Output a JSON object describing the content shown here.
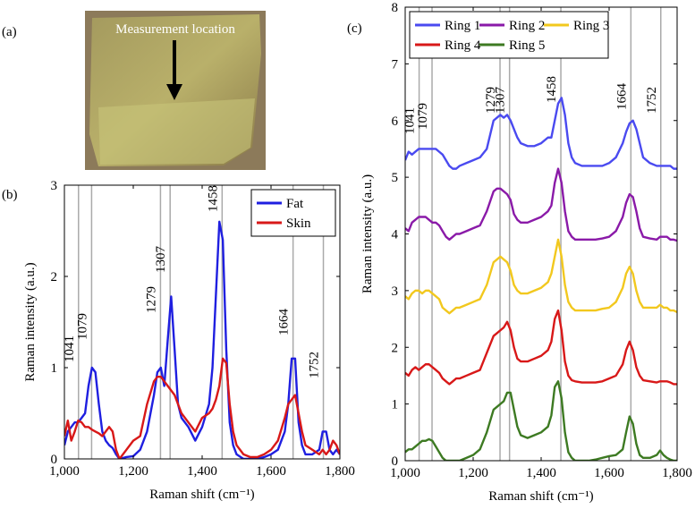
{
  "photo": {
    "panel_label": "(a)",
    "annotation": "Measurement location"
  },
  "chart_data": [
    {
      "type": "line",
      "panel_label": "(b)",
      "x_label": "Raman shift (cm⁻¹)",
      "y_label": "Raman intensity (a.u.)",
      "xlim": [
        1000,
        1800
      ],
      "ylim": [
        0,
        3
      ],
      "xticks": [
        {
          "value": 1000,
          "label": "1,000"
        },
        {
          "value": 1200,
          "label": "1,200"
        },
        {
          "value": 1400,
          "label": "1,400"
        },
        {
          "value": 1600,
          "label": "1,600"
        },
        {
          "value": 1800,
          "label": "1,800"
        }
      ],
      "yticks": [
        0,
        1,
        2,
        3
      ],
      "legend_position": "upper right",
      "reference_lines": [
        1041,
        1079,
        1279,
        1307,
        1458,
        1664,
        1752
      ],
      "x": [
        1000,
        1010,
        1020,
        1030,
        1040,
        1050,
        1060,
        1070,
        1080,
        1090,
        1100,
        1110,
        1120,
        1130,
        1140,
        1150,
        1160,
        1180,
        1200,
        1220,
        1240,
        1260,
        1270,
        1280,
        1290,
        1300,
        1310,
        1320,
        1330,
        1340,
        1360,
        1380,
        1400,
        1420,
        1430,
        1440,
        1450,
        1460,
        1470,
        1480,
        1490,
        1500,
        1520,
        1540,
        1560,
        1580,
        1600,
        1620,
        1640,
        1650,
        1660,
        1670,
        1680,
        1690,
        1700,
        1720,
        1740,
        1750,
        1760,
        1770,
        1780,
        1790,
        1800
      ],
      "series": [
        {
          "name": "Fat",
          "color": "#1f1fe0",
          "values": [
            0.15,
            0.3,
            0.35,
            0.4,
            0.4,
            0.45,
            0.5,
            0.8,
            1.0,
            0.95,
            0.6,
            0.3,
            0.2,
            0.15,
            0.12,
            0.05,
            0.0,
            0.02,
            0.03,
            0.1,
            0.3,
            0.7,
            0.95,
            1.0,
            0.8,
            1.3,
            1.78,
            1.2,
            0.6,
            0.45,
            0.35,
            0.2,
            0.35,
            0.6,
            1.0,
            1.8,
            2.6,
            2.4,
            1.2,
            0.4,
            0.15,
            0.05,
            0.0,
            0.0,
            0.0,
            0.02,
            0.05,
            0.1,
            0.3,
            0.6,
            1.1,
            1.1,
            0.4,
            0.15,
            0.05,
            0.05,
            0.1,
            0.3,
            0.3,
            0.1,
            0.05,
            0.1,
            0.05
          ]
        },
        {
          "name": "Skin",
          "color": "#d81818",
          "values": [
            0.25,
            0.42,
            0.2,
            0.3,
            0.42,
            0.4,
            0.35,
            0.35,
            0.32,
            0.3,
            0.28,
            0.25,
            0.3,
            0.35,
            0.3,
            0.1,
            0.0,
            0.1,
            0.2,
            0.25,
            0.6,
            0.85,
            0.9,
            0.9,
            0.85,
            0.8,
            0.75,
            0.7,
            0.6,
            0.5,
            0.4,
            0.3,
            0.45,
            0.5,
            0.55,
            0.65,
            0.8,
            1.1,
            1.05,
            0.6,
            0.3,
            0.15,
            0.05,
            0.02,
            0.02,
            0.05,
            0.1,
            0.2,
            0.45,
            0.6,
            0.65,
            0.7,
            0.5,
            0.3,
            0.15,
            0.1,
            0.05,
            0.1,
            0.05,
            0.1,
            0.2,
            0.15,
            0.05
          ]
        }
      ]
    },
    {
      "type": "line",
      "panel_label": "(c)",
      "x_label": "Raman shift (cm⁻¹)",
      "y_label": "Raman intensity (a.u.)",
      "xlim": [
        1000,
        1800
      ],
      "ylim": [
        0,
        8
      ],
      "xticks": [
        {
          "value": 1000,
          "label": "1,000"
        },
        {
          "value": 1200,
          "label": "1,200"
        },
        {
          "value": 1400,
          "label": "1,400"
        },
        {
          "value": 1600,
          "label": "1,600"
        },
        {
          "value": 1800,
          "label": "1,800"
        }
      ],
      "yticks": [
        0,
        1,
        2,
        3,
        4,
        5,
        6,
        7,
        8
      ],
      "legend_position": "upper left",
      "reference_lines": [
        1041,
        1079,
        1279,
        1307,
        1458,
        1664,
        1752
      ],
      "x": [
        1000,
        1010,
        1020,
        1030,
        1040,
        1050,
        1060,
        1070,
        1080,
        1090,
        1100,
        1110,
        1120,
        1130,
        1140,
        1150,
        1160,
        1180,
        1200,
        1220,
        1240,
        1260,
        1270,
        1280,
        1290,
        1300,
        1310,
        1320,
        1330,
        1340,
        1360,
        1380,
        1400,
        1420,
        1430,
        1440,
        1450,
        1460,
        1470,
        1480,
        1490,
        1500,
        1520,
        1540,
        1560,
        1580,
        1600,
        1620,
        1640,
        1650,
        1660,
        1670,
        1680,
        1690,
        1700,
        1720,
        1740,
        1750,
        1760,
        1770,
        1780,
        1790,
        1800
      ],
      "series": [
        {
          "name": "Ring 1",
          "color": "#4a4af0",
          "values": [
            5.3,
            5.45,
            5.4,
            5.45,
            5.5,
            5.5,
            5.5,
            5.5,
            5.5,
            5.5,
            5.45,
            5.4,
            5.3,
            5.2,
            5.15,
            5.15,
            5.2,
            5.25,
            5.3,
            5.35,
            5.5,
            6.0,
            6.05,
            6.1,
            6.05,
            6.1,
            6.0,
            5.85,
            5.7,
            5.6,
            5.55,
            5.55,
            5.6,
            5.7,
            5.7,
            6.0,
            6.3,
            6.4,
            6.1,
            5.6,
            5.35,
            5.25,
            5.2,
            5.2,
            5.2,
            5.2,
            5.25,
            5.35,
            5.6,
            5.8,
            5.95,
            6.0,
            5.85,
            5.6,
            5.35,
            5.25,
            5.2,
            5.2,
            5.2,
            5.2,
            5.2,
            5.15,
            5.15
          ]
        },
        {
          "name": "Ring 2",
          "color": "#8a1aa8",
          "values": [
            4.1,
            4.05,
            4.2,
            4.25,
            4.3,
            4.3,
            4.3,
            4.25,
            4.2,
            4.2,
            4.15,
            4.05,
            3.95,
            3.9,
            3.95,
            4.0,
            4.0,
            4.05,
            4.1,
            4.15,
            4.4,
            4.75,
            4.8,
            4.8,
            4.75,
            4.7,
            4.6,
            4.35,
            4.25,
            4.2,
            4.2,
            4.25,
            4.3,
            4.4,
            4.5,
            4.9,
            5.15,
            4.9,
            4.4,
            4.05,
            3.95,
            3.9,
            3.9,
            3.9,
            3.9,
            3.92,
            3.95,
            4.05,
            4.3,
            4.55,
            4.7,
            4.65,
            4.4,
            4.1,
            3.95,
            3.92,
            3.9,
            3.95,
            3.95,
            3.95,
            3.9,
            3.9,
            3.88
          ]
        },
        {
          "name": "Ring 3",
          "color": "#f2c81e",
          "values": [
            2.9,
            2.85,
            2.95,
            3.0,
            3.0,
            2.95,
            3.0,
            3.0,
            2.95,
            2.9,
            2.85,
            2.7,
            2.65,
            2.6,
            2.65,
            2.7,
            2.7,
            2.75,
            2.8,
            2.85,
            3.1,
            3.5,
            3.55,
            3.6,
            3.55,
            3.5,
            3.35,
            3.1,
            3.0,
            2.95,
            2.95,
            3.0,
            3.05,
            3.15,
            3.3,
            3.6,
            3.9,
            3.6,
            3.1,
            2.8,
            2.7,
            2.65,
            2.65,
            2.65,
            2.65,
            2.68,
            2.7,
            2.8,
            3.05,
            3.3,
            3.42,
            3.3,
            3.0,
            2.8,
            2.7,
            2.7,
            2.7,
            2.75,
            2.7,
            2.7,
            2.65,
            2.65,
            2.62
          ]
        },
        {
          "name": "Ring 4",
          "color": "#d81818",
          "values": [
            1.55,
            1.5,
            1.6,
            1.65,
            1.6,
            1.65,
            1.7,
            1.7,
            1.65,
            1.6,
            1.55,
            1.45,
            1.4,
            1.35,
            1.4,
            1.45,
            1.45,
            1.5,
            1.55,
            1.6,
            1.9,
            2.2,
            2.25,
            2.3,
            2.35,
            2.45,
            2.3,
            2.0,
            1.8,
            1.75,
            1.75,
            1.8,
            1.85,
            1.95,
            2.1,
            2.5,
            2.65,
            2.3,
            1.75,
            1.5,
            1.42,
            1.4,
            1.38,
            1.38,
            1.38,
            1.4,
            1.45,
            1.5,
            1.7,
            1.95,
            2.1,
            1.95,
            1.65,
            1.5,
            1.42,
            1.4,
            1.38,
            1.4,
            1.4,
            1.4,
            1.38,
            1.35,
            1.35
          ]
        },
        {
          "name": "Ring 5",
          "color": "#3d7a22",
          "values": [
            0.15,
            0.2,
            0.2,
            0.25,
            0.3,
            0.35,
            0.35,
            0.38,
            0.35,
            0.25,
            0.15,
            0.05,
            0.0,
            0.0,
            0.0,
            0.0,
            0.0,
            0.05,
            0.1,
            0.2,
            0.5,
            0.9,
            0.95,
            1.0,
            1.05,
            1.2,
            1.2,
            0.9,
            0.6,
            0.45,
            0.4,
            0.45,
            0.5,
            0.6,
            0.8,
            1.3,
            1.4,
            1.1,
            0.5,
            0.15,
            0.05,
            0.0,
            0.0,
            0.0,
            0.02,
            0.05,
            0.08,
            0.1,
            0.2,
            0.5,
            0.78,
            0.65,
            0.3,
            0.1,
            0.05,
            0.05,
            0.1,
            0.18,
            0.1,
            0.05,
            0.02,
            0.0,
            0.0
          ]
        }
      ]
    }
  ]
}
